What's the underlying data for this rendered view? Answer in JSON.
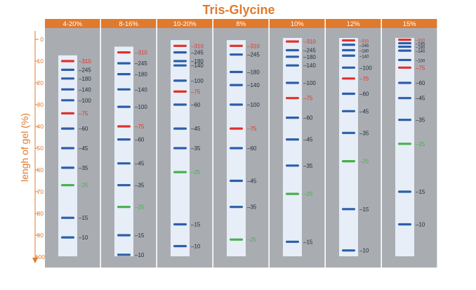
{
  "title": "Tris-Glycine",
  "y_axis_label": "lengh of gel (%)",
  "y_ticks": [
    "0",
    "10",
    "20",
    "30",
    "40",
    "50",
    "60",
    "70",
    "80",
    "90",
    "100"
  ],
  "colors": {
    "accent": "#E07A2E",
    "panel_bg": "#A9ADB2",
    "gel_bg": "#E7EEF8",
    "band_blue": "#2D5FA8",
    "band_red": "#E0322B",
    "band_green": "#47B04A",
    "label_dark": "#1E2A3A"
  },
  "lanes": [
    {
      "name": "4-20%",
      "gel_top_pct": 8,
      "markers": [
        {
          "label": "310",
          "pos": 10,
          "color": "red"
        },
        {
          "label": "245",
          "pos": 14,
          "color": "blue"
        },
        {
          "label": "180",
          "pos": 18,
          "color": "blue"
        },
        {
          "label": "140",
          "pos": 23,
          "color": "blue"
        },
        {
          "label": "100",
          "pos": 28,
          "color": "blue"
        },
        {
          "label": "75",
          "pos": 34,
          "color": "red"
        },
        {
          "label": "60",
          "pos": 41,
          "color": "blue"
        },
        {
          "label": "45",
          "pos": 50,
          "color": "blue"
        },
        {
          "label": "35",
          "pos": 59,
          "color": "blue"
        },
        {
          "label": "25",
          "pos": 67,
          "color": "green"
        },
        {
          "label": "15",
          "pos": 82,
          "color": "blue"
        },
        {
          "label": "10",
          "pos": 91,
          "color": "blue"
        }
      ]
    },
    {
      "name": "8-16%",
      "gel_top_pct": 4,
      "markers": [
        {
          "label": "310",
          "pos": 6,
          "color": "red"
        },
        {
          "label": "245",
          "pos": 11,
          "color": "blue"
        },
        {
          "label": "180",
          "pos": 16,
          "color": "blue"
        },
        {
          "label": "140",
          "pos": 23,
          "color": "blue"
        },
        {
          "label": "100",
          "pos": 31,
          "color": "blue"
        },
        {
          "label": "75",
          "pos": 40,
          "color": "red"
        },
        {
          "label": "60",
          "pos": 46,
          "color": "blue"
        },
        {
          "label": "45",
          "pos": 57,
          "color": "blue"
        },
        {
          "label": "35",
          "pos": 67,
          "color": "blue"
        },
        {
          "label": "25",
          "pos": 77,
          "color": "green"
        },
        {
          "label": "15",
          "pos": 90,
          "color": "blue"
        },
        {
          "label": "10",
          "pos": 99,
          "color": "blue"
        }
      ]
    },
    {
      "name": "10-20%",
      "gel_top_pct": 1,
      "markers": [
        {
          "label": "310",
          "pos": 3,
          "color": "red"
        },
        {
          "label": "245",
          "pos": 6,
          "color": "blue"
        },
        {
          "label": "180",
          "pos": 10,
          "color": "blue"
        },
        {
          "label": "140",
          "pos": 12,
          "color": "blue"
        },
        {
          "label": "100",
          "pos": 19,
          "color": "blue"
        },
        {
          "label": "75",
          "pos": 24,
          "color": "red"
        },
        {
          "label": "60",
          "pos": 30,
          "color": "blue"
        },
        {
          "label": "45",
          "pos": 41,
          "color": "blue"
        },
        {
          "label": "35",
          "pos": 50,
          "color": "blue"
        },
        {
          "label": "25",
          "pos": 61,
          "color": "green"
        },
        {
          "label": "15",
          "pos": 85,
          "color": "blue"
        },
        {
          "label": "10",
          "pos": 95,
          "color": "blue"
        }
      ]
    },
    {
      "name": "8%",
      "gel_top_pct": 1,
      "markers": [
        {
          "label": "310",
          "pos": 3,
          "color": "red"
        },
        {
          "label": "245",
          "pos": 7,
          "color": "blue"
        },
        {
          "label": "180",
          "pos": 15,
          "color": "blue"
        },
        {
          "label": "140",
          "pos": 21,
          "color": "blue"
        },
        {
          "label": "100",
          "pos": 30,
          "color": "blue"
        },
        {
          "label": "75",
          "pos": 41,
          "color": "red"
        },
        {
          "label": "60",
          "pos": 50,
          "color": "blue"
        },
        {
          "label": "45",
          "pos": 65,
          "color": "blue"
        },
        {
          "label": "35",
          "pos": 77,
          "color": "blue"
        },
        {
          "label": "25",
          "pos": 92,
          "color": "green"
        }
      ]
    },
    {
      "name": "10%",
      "gel_top_pct": 0,
      "markers": [
        {
          "label": "310",
          "pos": 1,
          "color": "red"
        },
        {
          "label": "245",
          "pos": 5,
          "color": "blue"
        },
        {
          "label": "180",
          "pos": 8,
          "color": "blue"
        },
        {
          "label": "140",
          "pos": 12,
          "color": "blue"
        },
        {
          "label": "100",
          "pos": 20,
          "color": "blue"
        },
        {
          "label": "75",
          "pos": 27,
          "color": "red"
        },
        {
          "label": "60",
          "pos": 36,
          "color": "blue"
        },
        {
          "label": "45",
          "pos": 46,
          "color": "blue"
        },
        {
          "label": "35",
          "pos": 58,
          "color": "blue"
        },
        {
          "label": "25",
          "pos": 71,
          "color": "green"
        },
        {
          "label": "15",
          "pos": 93,
          "color": "blue"
        }
      ]
    },
    {
      "name": "12%",
      "gel_top_pct": 0,
      "markers": [
        {
          "label": "310",
          "pos": 0.5,
          "color": "red"
        },
        {
          "label": "245",
          "pos": 2.5,
          "color": "blue"
        },
        {
          "label": "180",
          "pos": 5,
          "color": "blue"
        },
        {
          "label": "140",
          "pos": 7.5,
          "color": "blue"
        },
        {
          "label": "100",
          "pos": 13,
          "color": "blue"
        },
        {
          "label": "75",
          "pos": 18,
          "color": "red"
        },
        {
          "label": "60",
          "pos": 25,
          "color": "blue"
        },
        {
          "label": "45",
          "pos": 33,
          "color": "blue"
        },
        {
          "label": "35",
          "pos": 43,
          "color": "blue"
        },
        {
          "label": "25",
          "pos": 56,
          "color": "green"
        },
        {
          "label": "15",
          "pos": 78,
          "color": "blue"
        },
        {
          "label": "10",
          "pos": 97,
          "color": "blue"
        }
      ]
    },
    {
      "name": "15%",
      "gel_top_pct": 0,
      "markers": [
        {
          "label": "310",
          "pos": 0.2,
          "color": "red"
        },
        {
          "label": "245",
          "pos": 1.8,
          "color": "blue"
        },
        {
          "label": "180",
          "pos": 3.4,
          "color": "blue"
        },
        {
          "label": "140",
          "pos": 5.2,
          "color": "blue"
        },
        {
          "label": "100",
          "pos": 9.5,
          "color": "blue"
        },
        {
          "label": "75",
          "pos": 13,
          "color": "red"
        },
        {
          "label": "60",
          "pos": 20,
          "color": "blue"
        },
        {
          "label": "45",
          "pos": 27,
          "color": "blue"
        },
        {
          "label": "35",
          "pos": 37,
          "color": "blue"
        },
        {
          "label": "25",
          "pos": 48,
          "color": "green"
        },
        {
          "label": "15",
          "pos": 70,
          "color": "blue"
        },
        {
          "label": "10",
          "pos": 85,
          "color": "blue"
        }
      ]
    }
  ]
}
